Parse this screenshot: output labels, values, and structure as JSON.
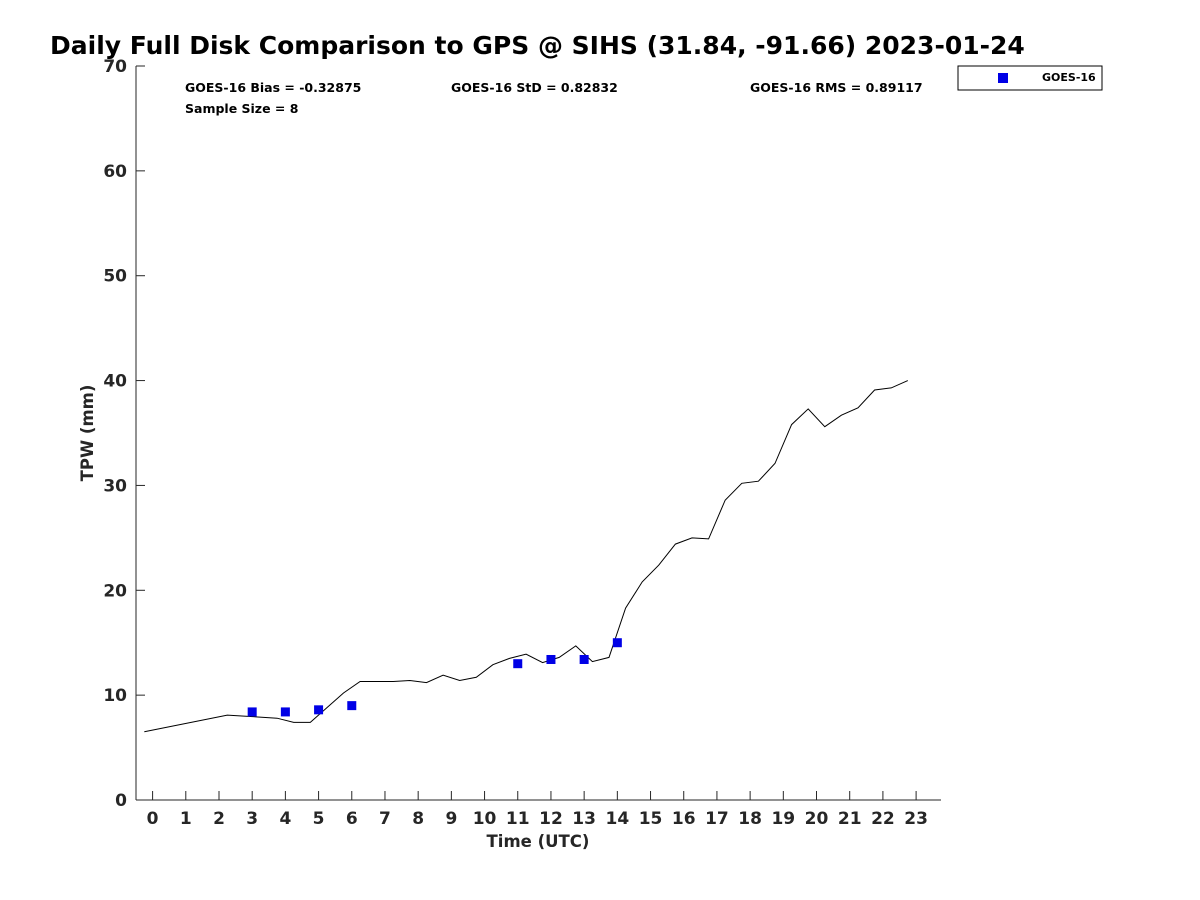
{
  "chart_data": {
    "type": "line",
    "title": "Daily Full Disk Comparison to GPS @ SIHS (31.84, -91.66) 2023-01-24",
    "xlabel": "Time (UTC)",
    "ylabel": "TPW (mm)",
    "xlim": [
      -0.5,
      23.75
    ],
    "ylim": [
      0,
      70
    ],
    "x_ticks": [
      0,
      1,
      2,
      3,
      4,
      5,
      6,
      7,
      8,
      9,
      10,
      11,
      12,
      13,
      14,
      15,
      16,
      17,
      18,
      19,
      20,
      21,
      22,
      23
    ],
    "y_ticks": [
      0,
      10,
      20,
      30,
      40,
      50,
      60,
      70
    ],
    "grid": false,
    "legend_position": "top-right outside",
    "stats": {
      "bias": "GOES-16 Bias = -0.32875",
      "std": "GOES-16 StD = 0.82832",
      "rms": "GOES-16 RMS = 0.89117",
      "sample": "Sample Size = 8"
    },
    "series": [
      {
        "style": "line",
        "color": "#000000",
        "x": [
          -0.25,
          2.25,
          2.75,
          3.75,
          4.25,
          4.75,
          5.75,
          6.25,
          6.75,
          7.25,
          7.75,
          8.25,
          8.75,
          9.25,
          9.75,
          10.25,
          10.75,
          11.25,
          11.75,
          12.25,
          12.75,
          13.25,
          13.75,
          14.25,
          14.75,
          15.25,
          15.75,
          16.25,
          16.75,
          17.25,
          17.75,
          18.25,
          18.75,
          19.25,
          19.75,
          20.25,
          20.75,
          21.25,
          21.75,
          22.25,
          22.75
        ],
        "y": [
          6.5,
          8.1,
          8.0,
          7.8,
          7.4,
          7.4,
          10.2,
          11.3,
          11.3,
          11.3,
          11.4,
          11.2,
          11.9,
          11.4,
          11.7,
          12.9,
          13.5,
          13.9,
          13.1,
          13.6,
          14.7,
          13.2,
          13.6,
          18.3,
          20.8,
          22.4,
          24.4,
          25.0,
          24.9,
          28.6,
          30.2,
          30.4,
          32.1,
          35.8,
          37.3,
          35.6,
          36.7,
          37.4,
          39.1,
          39.3,
          40.0
        ]
      },
      {
        "name": "GOES-16",
        "style": "marker",
        "color": "#0000e6",
        "x": [
          3.0,
          4.0,
          5.0,
          6.0,
          11.0,
          12.0,
          13.0,
          14.0
        ],
        "y": [
          8.4,
          8.4,
          8.6,
          9.0,
          13.0,
          13.4,
          13.4,
          15.0
        ]
      }
    ]
  }
}
